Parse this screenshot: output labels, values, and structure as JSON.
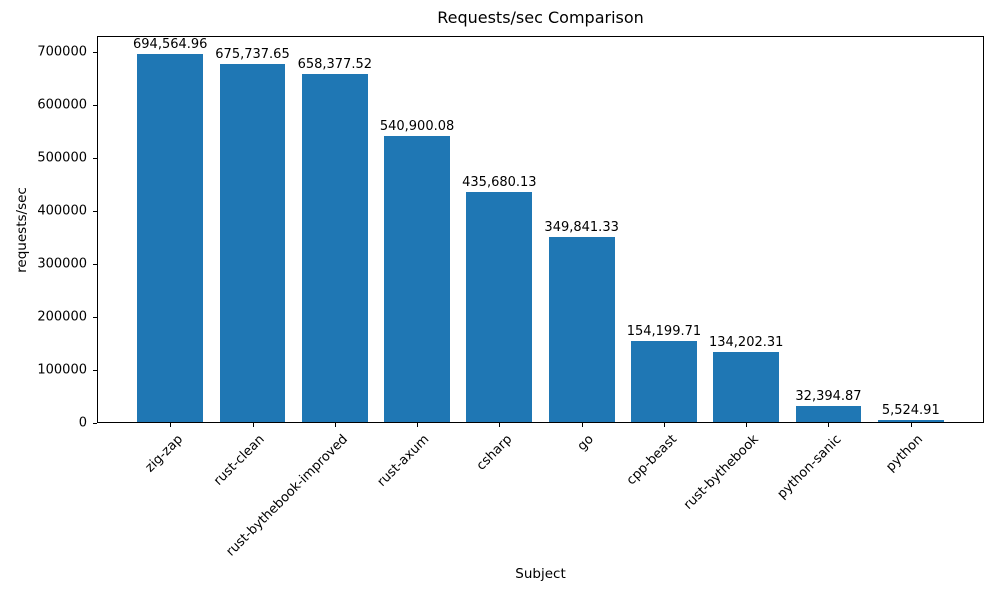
{
  "title": "Requests/sec Comparison",
  "chart_data": {
    "type": "bar",
    "title": "Requests/sec Comparison",
    "xlabel": "Subject",
    "ylabel": "requests/sec",
    "categories": [
      "zig-zap",
      "rust-clean",
      "rust-bythebook-improved",
      "rust-axum",
      "csharp",
      "go",
      "cpp-beast",
      "rust-bythebook",
      "python-sanic",
      "python"
    ],
    "values": [
      694564.96,
      675737.65,
      658377.52,
      540900.08,
      435680.13,
      349841.33,
      154199.71,
      134202.31,
      32394.87,
      5524.91
    ],
    "value_labels": [
      "694,564.96",
      "675,737.65",
      "658,377.52",
      "540,900.08",
      "435,680.13",
      "349,841.33",
      "154,199.71",
      "134,202.31",
      "32,394.87",
      "5,524.91"
    ],
    "yticks": [
      0,
      100000,
      200000,
      300000,
      400000,
      500000,
      600000,
      700000
    ],
    "ytick_labels": [
      "0",
      "100000",
      "200000",
      "300000",
      "400000",
      "500000",
      "600000",
      "700000"
    ],
    "ylim": [
      0,
      729293
    ],
    "bar_color": "#1f77b4",
    "axis_color": "#000000",
    "grid": false,
    "legend": null,
    "bar_width_fraction": 0.8,
    "x_margin_units": 0.89
  }
}
